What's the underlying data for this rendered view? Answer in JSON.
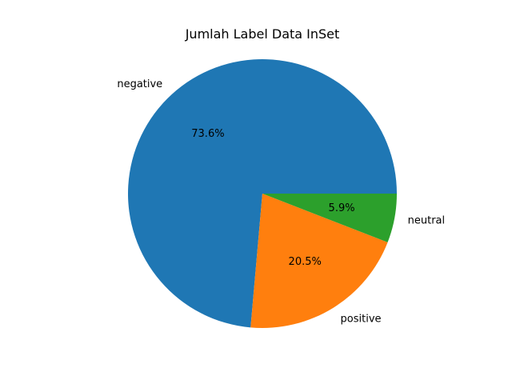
{
  "chart_data": {
    "type": "pie",
    "title": "Jumlah Label Data InSet",
    "categories": [
      "negative",
      "positive",
      "neutral"
    ],
    "values": [
      73.6,
      20.5,
      5.9
    ],
    "percent_labels": [
      "73.6%",
      "20.5%",
      "5.9%"
    ],
    "colors": [
      "#1f77b4",
      "#ff7f0e",
      "#2ca02c"
    ],
    "start_angle_deg": 0,
    "direction": "counterclockwise"
  }
}
